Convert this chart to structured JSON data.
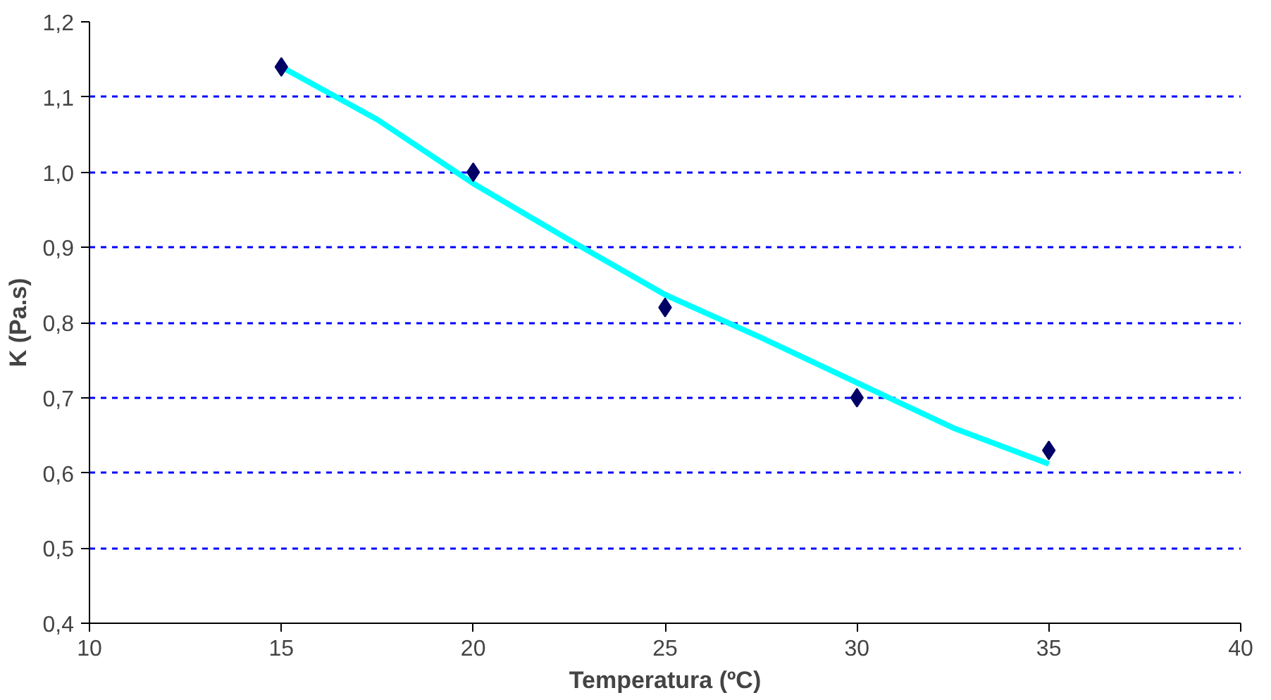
{
  "chart_data": {
    "type": "scatter",
    "xlabel": "Temperatura (ºC)",
    "ylabel": "K (Pa.s)",
    "xlim": [
      10,
      40
    ],
    "xticks": [
      10,
      15,
      20,
      25,
      30,
      35,
      40
    ],
    "ylim": [
      0.4,
      1.2
    ],
    "yticks": [
      {
        "value": 0.4,
        "label": "0,4"
      },
      {
        "value": 0.5,
        "label": "0,5"
      },
      {
        "value": 0.6,
        "label": "0,6"
      },
      {
        "value": 0.7,
        "label": "0,7"
      },
      {
        "value": 0.8,
        "label": "0,8"
      },
      {
        "value": 0.9,
        "label": "0,9"
      },
      {
        "value": 1.0,
        "label": "1,0"
      },
      {
        "value": 1.1,
        "label": "1,1"
      },
      {
        "value": 1.2,
        "label": "1,2"
      }
    ],
    "grid": "y",
    "series": [
      {
        "type": "line",
        "color": "#00ffff",
        "marker": "none",
        "line_style": "solid",
        "x": [
          15,
          17.5,
          20,
          22.5,
          25,
          27.5,
          30,
          32.5,
          35
        ],
        "values": [
          1.14,
          1.07,
          0.985,
          0.91,
          0.837,
          0.78,
          0.72,
          0.66,
          0.612
        ]
      },
      {
        "color": "#000066",
        "marker": "diamond",
        "x": [
          15,
          20,
          25,
          30,
          35
        ],
        "values": [
          1.14,
          1.0,
          0.82,
          0.7,
          0.63
        ]
      }
    ]
  }
}
